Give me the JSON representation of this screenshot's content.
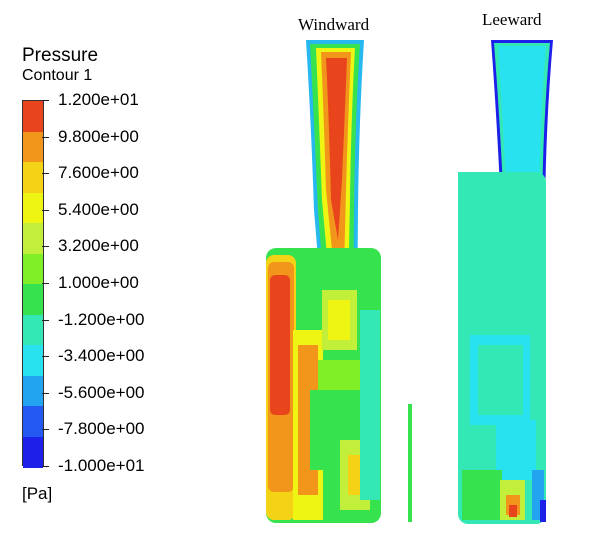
{
  "legend": {
    "title": "Pressure",
    "subtitle": "Contour 1",
    "units": "[Pa]",
    "ticks": [
      "1.200e+01",
      "9.800e+00",
      "7.600e+00",
      "5.400e+00",
      "3.200e+00",
      "1.000e+00",
      "-1.200e+00",
      "-3.400e+00",
      "-5.600e+00",
      "-7.800e+00",
      "-1.000e+01"
    ],
    "colors": [
      "#e8451d",
      "#f2961b",
      "#f4d316",
      "#eef512",
      "#c2f03a",
      "#80ef28",
      "#36e24e",
      "#34e8b6",
      "#28e2ef",
      "#22a4f0",
      "#2458f2",
      "#1c20e8"
    ]
  },
  "views": {
    "windward": {
      "title": "Windward"
    },
    "leeward": {
      "title": "Leeward"
    }
  }
}
